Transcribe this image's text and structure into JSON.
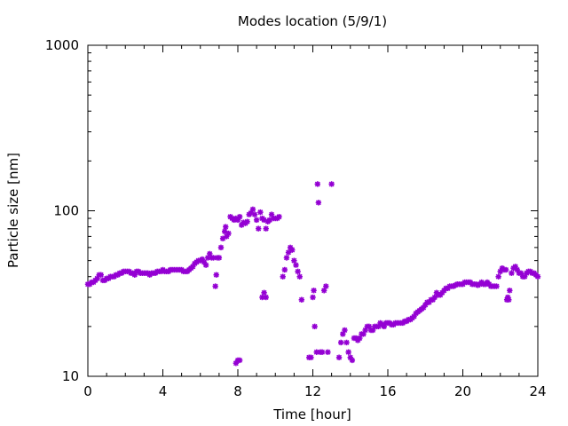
{
  "chart_data": {
    "type": "scatter",
    "title": "Modes location (5/9/1)",
    "xlabel": "Time [hour]",
    "ylabel": "Particle size [nm]",
    "xlim": [
      0,
      24
    ],
    "ylim": [
      10,
      1000
    ],
    "yscale": "log",
    "grid": false,
    "xticks": [
      0,
      4,
      8,
      12,
      16,
      20,
      24
    ],
    "yticks": [
      10,
      100,
      1000
    ],
    "marker_color": "#9400d3",
    "series": [
      {
        "points": [
          [
            0.0,
            36
          ],
          [
            0.1,
            36
          ],
          [
            0.2,
            37
          ],
          [
            0.3,
            37
          ],
          [
            0.4,
            38
          ],
          [
            0.5,
            39
          ],
          [
            0.6,
            41
          ],
          [
            0.7,
            41
          ],
          [
            0.8,
            38
          ],
          [
            0.9,
            38
          ],
          [
            1.0,
            39
          ],
          [
            1.1,
            39
          ],
          [
            1.2,
            40
          ],
          [
            1.3,
            40
          ],
          [
            1.4,
            40
          ],
          [
            1.5,
            41
          ],
          [
            1.6,
            41
          ],
          [
            1.7,
            42
          ],
          [
            1.8,
            42
          ],
          [
            1.9,
            43
          ],
          [
            2.0,
            43
          ],
          [
            2.1,
            43
          ],
          [
            2.2,
            43
          ],
          [
            2.3,
            42
          ],
          [
            2.4,
            42
          ],
          [
            2.5,
            41
          ],
          [
            2.6,
            43
          ],
          [
            2.7,
            43
          ],
          [
            2.8,
            42
          ],
          [
            2.9,
            42
          ],
          [
            3.0,
            42
          ],
          [
            3.1,
            42
          ],
          [
            3.2,
            42
          ],
          [
            3.3,
            41
          ],
          [
            3.4,
            42
          ],
          [
            3.5,
            42
          ],
          [
            3.6,
            42
          ],
          [
            3.7,
            43
          ],
          [
            3.8,
            43
          ],
          [
            3.9,
            43
          ],
          [
            4.0,
            44
          ],
          [
            4.1,
            43
          ],
          [
            4.2,
            43
          ],
          [
            4.3,
            43
          ],
          [
            4.4,
            44
          ],
          [
            4.5,
            44
          ],
          [
            4.6,
            44
          ],
          [
            4.7,
            44
          ],
          [
            4.8,
            44
          ],
          [
            4.9,
            44
          ],
          [
            5.0,
            44
          ],
          [
            5.1,
            43
          ],
          [
            5.2,
            43
          ],
          [
            5.3,
            43
          ],
          [
            5.4,
            44
          ],
          [
            5.5,
            45
          ],
          [
            5.6,
            46
          ],
          [
            5.7,
            48
          ],
          [
            5.8,
            49
          ],
          [
            5.9,
            50
          ],
          [
            6.0,
            50
          ],
          [
            6.1,
            51
          ],
          [
            6.2,
            49
          ],
          [
            6.3,
            47
          ],
          [
            6.4,
            52
          ],
          [
            6.5,
            55
          ],
          [
            6.6,
            52
          ],
          [
            6.7,
            52
          ],
          [
            6.8,
            35
          ],
          [
            6.85,
            41
          ],
          [
            6.9,
            52
          ],
          [
            7.0,
            52
          ],
          [
            7.1,
            60
          ],
          [
            7.2,
            68
          ],
          [
            7.3,
            75
          ],
          [
            7.35,
            80
          ],
          [
            7.4,
            70
          ],
          [
            7.5,
            73
          ],
          [
            7.6,
            92
          ],
          [
            7.7,
            90
          ],
          [
            7.8,
            88
          ],
          [
            7.9,
            90
          ],
          [
            8.0,
            88
          ],
          [
            8.1,
            92
          ],
          [
            8.2,
            82
          ],
          [
            8.3,
            85
          ],
          [
            8.4,
            84
          ],
          [
            8.5,
            86
          ],
          [
            8.6,
            95
          ],
          [
            8.7,
            97
          ],
          [
            8.8,
            102
          ],
          [
            8.9,
            95
          ],
          [
            9.0,
            88
          ],
          [
            9.1,
            78
          ],
          [
            9.2,
            98
          ],
          [
            9.3,
            90
          ],
          [
            9.4,
            88
          ],
          [
            9.5,
            78
          ],
          [
            9.6,
            86
          ],
          [
            9.7,
            88
          ],
          [
            9.8,
            95
          ],
          [
            9.9,
            90
          ],
          [
            10.0,
            90
          ],
          [
            10.1,
            90
          ],
          [
            10.2,
            92
          ],
          [
            7.9,
            12
          ],
          [
            8.0,
            12.5
          ],
          [
            8.1,
            12.5
          ],
          [
            9.3,
            30
          ],
          [
            9.4,
            32
          ],
          [
            9.5,
            30
          ],
          [
            10.4,
            40
          ],
          [
            10.5,
            44
          ],
          [
            10.6,
            52
          ],
          [
            10.7,
            56
          ],
          [
            10.8,
            60
          ],
          [
            10.9,
            58
          ],
          [
            11.0,
            50
          ],
          [
            11.1,
            47
          ],
          [
            11.2,
            43
          ],
          [
            11.3,
            40
          ],
          [
            11.4,
            29
          ],
          [
            11.8,
            13
          ],
          [
            11.9,
            13
          ],
          [
            12.0,
            30
          ],
          [
            12.05,
            33
          ],
          [
            12.1,
            20
          ],
          [
            12.2,
            14
          ],
          [
            12.25,
            145
          ],
          [
            12.3,
            112
          ],
          [
            12.4,
            14
          ],
          [
            12.5,
            14
          ],
          [
            12.6,
            33
          ],
          [
            12.7,
            35
          ],
          [
            12.8,
            14
          ],
          [
            13.0,
            145
          ],
          [
            13.4,
            13
          ],
          [
            13.5,
            16
          ],
          [
            13.6,
            18
          ],
          [
            13.7,
            19
          ],
          [
            13.8,
            16
          ],
          [
            13.9,
            14
          ],
          [
            14.0,
            13
          ],
          [
            14.1,
            12.5
          ],
          [
            14.2,
            17
          ],
          [
            14.3,
            17
          ],
          [
            14.4,
            16.5
          ],
          [
            14.5,
            17
          ],
          [
            14.6,
            18
          ],
          [
            14.7,
            18
          ],
          [
            14.8,
            19
          ],
          [
            14.9,
            20
          ],
          [
            15.0,
            20
          ],
          [
            15.1,
            19
          ],
          [
            15.2,
            19
          ],
          [
            15.3,
            20
          ],
          [
            15.4,
            20
          ],
          [
            15.5,
            20
          ],
          [
            15.6,
            21
          ],
          [
            15.7,
            20.5
          ],
          [
            15.8,
            20
          ],
          [
            15.9,
            21
          ],
          [
            16.0,
            21
          ],
          [
            16.1,
            21
          ],
          [
            16.2,
            20.5
          ],
          [
            16.3,
            20.5
          ],
          [
            16.4,
            21
          ],
          [
            16.5,
            21
          ],
          [
            16.6,
            21
          ],
          [
            16.7,
            21
          ],
          [
            16.8,
            21
          ],
          [
            16.9,
            21.5
          ],
          [
            17.0,
            21.5
          ],
          [
            17.1,
            22
          ],
          [
            17.2,
            22
          ],
          [
            17.3,
            22.5
          ],
          [
            17.4,
            23
          ],
          [
            17.5,
            24
          ],
          [
            17.6,
            24.5
          ],
          [
            17.7,
            25
          ],
          [
            17.8,
            25.5
          ],
          [
            17.9,
            26
          ],
          [
            18.0,
            27
          ],
          [
            18.1,
            28
          ],
          [
            18.2,
            28
          ],
          [
            18.3,
            29
          ],
          [
            18.4,
            29
          ],
          [
            18.5,
            30
          ],
          [
            18.6,
            32
          ],
          [
            18.7,
            31
          ],
          [
            18.8,
            31
          ],
          [
            18.9,
            32
          ],
          [
            19.0,
            33
          ],
          [
            19.1,
            34
          ],
          [
            19.2,
            34
          ],
          [
            19.3,
            35
          ],
          [
            19.4,
            35
          ],
          [
            19.5,
            35
          ],
          [
            19.6,
            35.5
          ],
          [
            19.7,
            36
          ],
          [
            19.8,
            36
          ],
          [
            19.9,
            36
          ],
          [
            20.0,
            36
          ],
          [
            20.1,
            37
          ],
          [
            20.2,
            37
          ],
          [
            20.3,
            37
          ],
          [
            20.4,
            37
          ],
          [
            20.5,
            36
          ],
          [
            20.6,
            36
          ],
          [
            20.7,
            36
          ],
          [
            20.8,
            35.5
          ],
          [
            20.9,
            36
          ],
          [
            21.0,
            37
          ],
          [
            21.1,
            36
          ],
          [
            21.2,
            36
          ],
          [
            21.3,
            37
          ],
          [
            21.4,
            36
          ],
          [
            21.5,
            35
          ],
          [
            21.6,
            35
          ],
          [
            21.7,
            35
          ],
          [
            21.8,
            35
          ],
          [
            21.9,
            40
          ],
          [
            22.0,
            43
          ],
          [
            22.1,
            45
          ],
          [
            22.2,
            44
          ],
          [
            22.3,
            44
          ],
          [
            22.35,
            29
          ],
          [
            22.4,
            30
          ],
          [
            22.45,
            29
          ],
          [
            22.5,
            33
          ],
          [
            22.6,
            42
          ],
          [
            22.7,
            45
          ],
          [
            22.8,
            46
          ],
          [
            22.9,
            44
          ],
          [
            23.0,
            42
          ],
          [
            23.1,
            42
          ],
          [
            23.2,
            40
          ],
          [
            23.3,
            40
          ],
          [
            23.4,
            42
          ],
          [
            23.5,
            43
          ],
          [
            23.6,
            43
          ],
          [
            23.7,
            42
          ],
          [
            23.8,
            42
          ],
          [
            23.9,
            41
          ],
          [
            24.0,
            40
          ]
        ]
      }
    ]
  }
}
